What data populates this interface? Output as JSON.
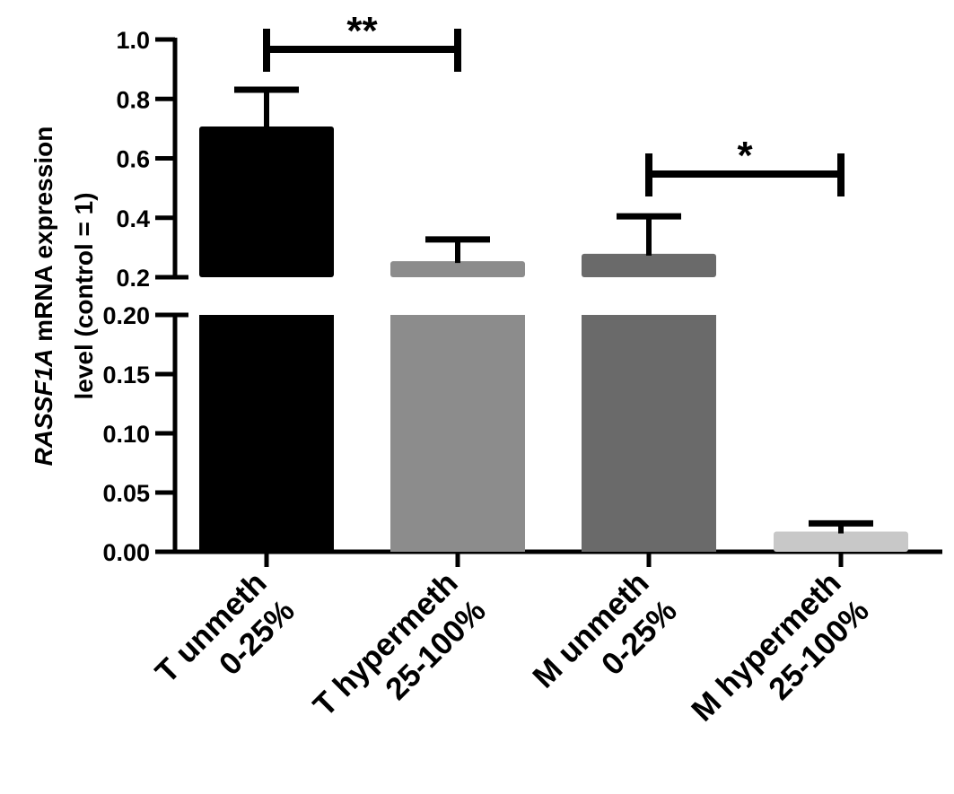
{
  "chart_data": {
    "type": "bar",
    "ylabel_italic": "RASSF1A",
    "ylabel_rest": " mRNA expression",
    "ylabel_line2": "level (control = 1)",
    "y_axis_broken": true,
    "y_segments": [
      {
        "range": [
          0,
          0.2
        ],
        "ticks": [
          "0.00",
          "0.05",
          "0.10",
          "0.15",
          "0.20"
        ],
        "tick_values": [
          0,
          0.05,
          0.1,
          0.15,
          0.2
        ]
      },
      {
        "range": [
          0.2,
          1.0
        ],
        "ticks": [
          "0.2",
          "0.4",
          "0.6",
          "0.8",
          "1.0"
        ],
        "tick_values": [
          0.2,
          0.4,
          0.6,
          0.8,
          1.0
        ]
      }
    ],
    "categories": [
      {
        "line1": "T unmeth",
        "line2": "0-25%"
      },
      {
        "line1": "T hypermeth",
        "line2": "25-100%"
      },
      {
        "line1": "M unmeth",
        "line2": "0-25%"
      },
      {
        "line1": "M hypermeth",
        "line2": "25-100%"
      }
    ],
    "values": [
      0.707,
      0.254,
      0.279,
      0.017
    ],
    "error_upper": [
      0.831,
      0.327,
      0.405,
      0.024
    ],
    "colors": [
      "#000000",
      "#8c8c8c",
      "#6a6a6a",
      "#c8c8c8"
    ],
    "significance": [
      {
        "from": 0,
        "to": 1,
        "label": "**"
      },
      {
        "from": 2,
        "to": 3,
        "label": "*"
      }
    ],
    "grid": false
  }
}
